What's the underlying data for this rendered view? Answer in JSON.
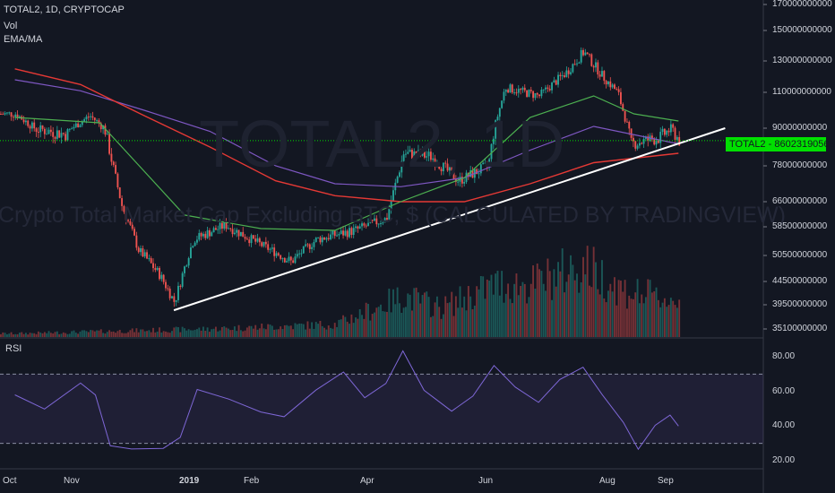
{
  "header": {
    "symbol_line": "TOTAL2, 1D, CRYPTOCAP",
    "vol_label": "Vol",
    "ema_label": "EMA/MA"
  },
  "watermark": {
    "symbol": "TOTAL2, 1D",
    "description": "Crypto Total Market Cap Excluding BTC, $ (CALCULATED BY TRADINGVIEW)"
  },
  "price_tag": {
    "label": "TOTAL2",
    "value": "86023190568",
    "color": "#00e000"
  },
  "rsi_panel": {
    "label": "RSI",
    "ticks": [
      "80.00",
      "60.00",
      "40.00",
      "20.00"
    ],
    "band": [
      30,
      70
    ]
  },
  "colors": {
    "background": "#131722",
    "up": "#26a69a",
    "down": "#ef5350",
    "ema_green": "#4caf50",
    "ma_red": "#e53935",
    "ma_purple": "#7e57c2",
    "rsi_line": "#7e67d6",
    "trendline": "#ffffff"
  },
  "chart_data": {
    "type": "candlestick",
    "y_axis_ticks": [
      "170000000000",
      "150000000000",
      "130000000000",
      "110000000000",
      "90000000000",
      "78000000000",
      "66000000000",
      "58500000000",
      "50500000000",
      "44500000000",
      "39500000000",
      "35100000000"
    ],
    "x_axis_ticks": [
      "Oct",
      "Nov",
      "2019",
      "Feb",
      "Apr",
      "Jun",
      "Aug",
      "Sep"
    ],
    "price_keypoints": [
      [
        "2018-10-01",
        98000000000
      ],
      [
        "2018-10-10",
        90000000000
      ],
      [
        "2018-10-25",
        88000000000
      ],
      [
        "2018-11-05",
        97000000000
      ],
      [
        "2018-11-12",
        90000000000
      ],
      [
        "2018-11-20",
        65000000000
      ],
      [
        "2018-11-28",
        52000000000
      ],
      [
        "2018-12-08",
        46000000000
      ],
      [
        "2018-12-15",
        40000000000
      ],
      [
        "2018-12-24",
        55000000000
      ],
      [
        "2019-01-08",
        59000000000
      ],
      [
        "2019-01-20",
        55000000000
      ],
      [
        "2019-02-08",
        49000000000
      ],
      [
        "2019-02-20",
        55000000000
      ],
      [
        "2019-03-10",
        57500000000
      ],
      [
        "2019-03-25",
        61000000000
      ],
      [
        "2019-04-02",
        82000000000
      ],
      [
        "2019-04-15",
        81000000000
      ],
      [
        "2019-04-28",
        73000000000
      ],
      [
        "2019-05-12",
        78000000000
      ],
      [
        "2019-05-20",
        113000000000
      ],
      [
        "2019-06-05",
        108000000000
      ],
      [
        "2019-06-18",
        123000000000
      ],
      [
        "2019-06-26",
        136000000000
      ],
      [
        "2019-07-05",
        120000000000
      ],
      [
        "2019-07-12",
        110000000000
      ],
      [
        "2019-07-18",
        85000000000
      ],
      [
        "2019-08-01",
        87000000000
      ],
      [
        "2019-08-06",
        90000000000
      ],
      [
        "2019-08-10",
        86000000000
      ]
    ],
    "ema_green_keypoints": [
      [
        "2018-10-01",
        96000000000
      ],
      [
        "2018-11-10",
        93000000000
      ],
      [
        "2018-12-20",
        62000000000
      ],
      [
        "2019-01-25",
        58000000000
      ],
      [
        "2019-03-01",
        57500000000
      ],
      [
        "2019-04-01",
        66000000000
      ],
      [
        "2019-05-01",
        74000000000
      ],
      [
        "2019-06-01",
        96000000000
      ],
      [
        "2019-07-01",
        108000000000
      ],
      [
        "2019-07-20",
        98000000000
      ],
      [
        "2019-08-10",
        94000000000
      ]
    ],
    "ma_red_keypoints": [
      [
        "2018-10-01",
        125000000000
      ],
      [
        "2018-11-01",
        115000000000
      ],
      [
        "2018-12-01",
        97000000000
      ],
      [
        "2019-01-01",
        84000000000
      ],
      [
        "2019-02-01",
        73000000000
      ],
      [
        "2019-03-01",
        68000000000
      ],
      [
        "2019-04-01",
        66000000000
      ],
      [
        "2019-05-01",
        66000000000
      ],
      [
        "2019-06-01",
        72000000000
      ],
      [
        "2019-07-01",
        79000000000
      ],
      [
        "2019-08-10",
        82000000000
      ]
    ],
    "ma_purple_keypoints": [
      [
        "2018-10-01",
        118000000000
      ],
      [
        "2018-11-01",
        111000000000
      ],
      [
        "2018-12-01",
        100000000000
      ],
      [
        "2019-01-01",
        89000000000
      ],
      [
        "2019-02-01",
        78000000000
      ],
      [
        "2019-03-01",
        72000000000
      ],
      [
        "2019-04-01",
        71000000000
      ],
      [
        "2019-05-01",
        74000000000
      ],
      [
        "2019-06-01",
        83000000000
      ],
      [
        "2019-07-01",
        91000000000
      ],
      [
        "2019-08-10",
        85000000000
      ]
    ],
    "trendline": [
      [
        "2018-12-15",
        38500000000
      ],
      [
        "2019-09-01",
        90000000000
      ]
    ],
    "last_price": 86023190568,
    "rsi_keypoints": [
      [
        "2018-10-01",
        58
      ],
      [
        "2018-10-15",
        48
      ],
      [
        "2018-11-01",
        65
      ],
      [
        "2018-11-08",
        56
      ],
      [
        "2018-11-15",
        30
      ],
      [
        "2018-11-25",
        26
      ],
      [
        "2018-12-10",
        26
      ],
      [
        "2018-12-18",
        32
      ],
      [
        "2018-12-26",
        62
      ],
      [
        "2019-01-10",
        56
      ],
      [
        "2019-01-25",
        48
      ],
      [
        "2019-02-05",
        45
      ],
      [
        "2019-02-20",
        62
      ],
      [
        "2019-03-05",
        71
      ],
      [
        "2019-03-15",
        58
      ],
      [
        "2019-03-25",
        64
      ],
      [
        "2019-04-02",
        84
      ],
      [
        "2019-04-12",
        62
      ],
      [
        "2019-04-25",
        50
      ],
      [
        "2019-05-05",
        58
      ],
      [
        "2019-05-15",
        76
      ],
      [
        "2019-05-25",
        64
      ],
      [
        "2019-06-05",
        52
      ],
      [
        "2019-06-15",
        66
      ],
      [
        "2019-06-26",
        72
      ],
      [
        "2019-07-05",
        58
      ],
      [
        "2019-07-15",
        44
      ],
      [
        "2019-07-22",
        28
      ],
      [
        "2019-07-30",
        40
      ],
      [
        "2019-08-06",
        46
      ],
      [
        "2019-08-10",
        40
      ]
    ],
    "volume_keypoints": [
      [
        "2018-10-01",
        0.03
      ],
      [
        "2018-11-15",
        0.05
      ],
      [
        "2019-01-01",
        0.07
      ],
      [
        "2019-03-01",
        0.11
      ],
      [
        "2019-04-02",
        0.35
      ],
      [
        "2019-04-20",
        0.25
      ],
      [
        "2019-05-15",
        0.45
      ],
      [
        "2019-06-01",
        0.45
      ],
      [
        "2019-06-26",
        0.62
      ],
      [
        "2019-07-15",
        0.4
      ],
      [
        "2019-08-10",
        0.3
      ]
    ]
  }
}
